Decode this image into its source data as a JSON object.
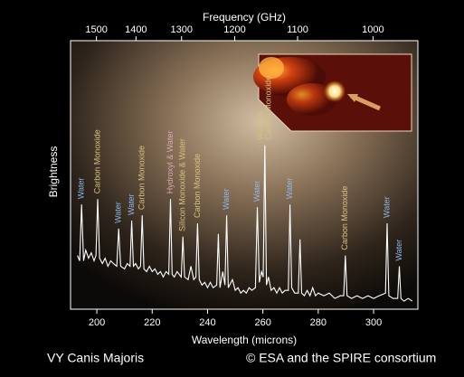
{
  "chart_data": {
    "type": "line",
    "title": "VY Canis Majoris",
    "credit": "© ESA and the SPIRE consortium",
    "xlabel": "Wavelength (microns)",
    "x2label": "Frequency (GHz)",
    "ylabel": "Brightness",
    "xlim": [
      190.5,
      316
    ],
    "ylim": [
      0,
      100
    ],
    "xticks": [
      200,
      220,
      240,
      260,
      280,
      300
    ],
    "x2ticks": [
      1500,
      1400,
      1300,
      1200,
      1100,
      1000
    ],
    "color": "#ffffff",
    "x": [
      193,
      193.8,
      194.5,
      195.2,
      196,
      197,
      198,
      199,
      199.7,
      200.3,
      201,
      202,
      203,
      204,
      205,
      206,
      207.2,
      207.9,
      208.6,
      210,
      211,
      212,
      212.6,
      213.2,
      214,
      215,
      215.8,
      216.4,
      217,
      218,
      219,
      220,
      221,
      222,
      223,
      224,
      225,
      226,
      226.6,
      227.2,
      228,
      229,
      230.5,
      231.1,
      231.7,
      233,
      234,
      235,
      235.8,
      236.4,
      237,
      238,
      239,
      240,
      241,
      242,
      243.3,
      243.9,
      244.5,
      245.5,
      246.3,
      246.9,
      247.5,
      249,
      250,
      251,
      252,
      253,
      254,
      255,
      256,
      257.3,
      258,
      258.7,
      259.5,
      260.1,
      260.7,
      261.3,
      262,
      263,
      264,
      265,
      266,
      267,
      268,
      269.2,
      269.8,
      270.4,
      271.5,
      272.8,
      273.4,
      274,
      275,
      276,
      277,
      278,
      279,
      280,
      282,
      284,
      286,
      288,
      289.2,
      289.8,
      290.4,
      292,
      294,
      296,
      298,
      300,
      302,
      304.3,
      304.9,
      305.5,
      307,
      308.7,
      309.3,
      309.9,
      311,
      312.5,
      314
    ],
    "values": [
      20,
      18,
      39,
      18,
      22,
      19,
      21,
      18,
      20,
      41,
      19,
      17,
      19,
      16,
      18,
      17,
      16,
      30,
      16,
      15,
      17,
      16,
      33,
      16,
      17,
      15,
      16,
      35,
      15,
      14,
      16,
      14,
      15,
      13,
      14,
      12,
      14,
      13,
      41,
      13,
      12,
      14,
      12,
      27,
      12,
      11,
      16,
      11,
      12,
      32,
      11,
      9,
      10,
      8,
      10,
      8,
      9,
      28,
      8,
      14,
      9,
      35,
      8,
      11,
      7,
      8,
      6,
      7,
      6,
      8,
      7,
      8,
      38,
      10,
      14,
      12,
      61,
      9,
      12,
      7,
      8,
      6,
      8,
      6,
      7,
      7,
      39,
      8,
      6,
      6,
      26,
      6,
      5,
      7,
      5,
      8,
      5,
      6,
      5,
      6,
      4,
      5,
      5,
      20,
      5,
      4,
      5,
      4,
      5,
      4,
      5,
      6,
      32,
      5,
      4,
      4,
      16,
      4,
      3,
      4,
      3
    ],
    "annotations": [
      {
        "x": 194.5,
        "color": "#8fb8e8",
        "lines": [
          "Water"
        ]
      },
      {
        "x": 200.3,
        "color": "#d8c080",
        "lines": [
          "Carbon Monoxide"
        ]
      },
      {
        "x": 207.9,
        "color": "#8fb8e8",
        "lines": [
          "Water"
        ]
      },
      {
        "x": 212.6,
        "color": "#8fb8e8",
        "lines": [
          "Water"
        ]
      },
      {
        "x": 216.4,
        "color": "#d8c080",
        "lines": [
          "Carbon Monoxide"
        ]
      },
      {
        "x": 226.6,
        "color": "#d8a8b8",
        "lines": [
          "Hydroxyl & Water"
        ]
      },
      {
        "x": 231.1,
        "color": "#d8c080",
        "lines": [
          "Silicon Monoxide & Water"
        ]
      },
      {
        "x": 236.4,
        "color": "#d8c080",
        "lines": [
          "Carbon Monoxide"
        ]
      },
      {
        "x": 246.9,
        "color": "#8fb8e8",
        "lines": [
          "Water"
        ]
      },
      {
        "x": 258.0,
        "color": "#8fb8e8",
        "lines": [
          "Water"
        ]
      },
      {
        "x": 260.7,
        "color": "#d8c080",
        "lines": [
          "Water &",
          "Carbon Monoxide"
        ]
      },
      {
        "x": 269.8,
        "color": "#8fb8e8",
        "lines": [
          "Water"
        ]
      },
      {
        "x": 289.8,
        "color": "#d8c080",
        "lines": [
          "Carbon Monoxide"
        ]
      },
      {
        "x": 304.9,
        "color": "#8fb8e8",
        "lines": [
          "Water"
        ]
      },
      {
        "x": 309.3,
        "color": "#8fb8e8",
        "lines": [
          "Water"
        ]
      }
    ]
  }
}
